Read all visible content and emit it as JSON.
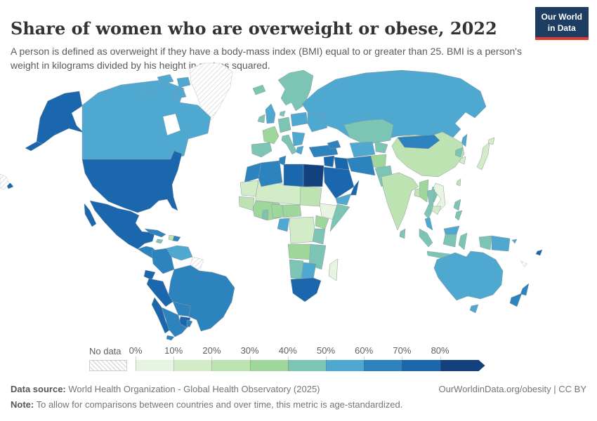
{
  "header": {
    "title": "Share of women who are overweight or obese, 2022",
    "subtitle": "A person is defined as overweight if they have a body-mass index (BMI) equal to or greater than 25. BMI is a person's weight in kilograms divided by his height in metres squared.",
    "logo": {
      "line1": "Our World",
      "line2": "in Data"
    }
  },
  "legend": {
    "no_data_label": "No data",
    "ticks": [
      "0%",
      "10%",
      "20%",
      "30%",
      "40%",
      "50%",
      "60%",
      "70%",
      "80%"
    ]
  },
  "footer": {
    "data_source_label": "Data source:",
    "data_source": " World Health Organization - Global Health Observatory (2025)",
    "note_label": "Note:",
    "note": " To allow for comparisons between countries and over time, this metric is age-standardized.",
    "attribution": "OurWorldinData.org/obesity | CC BY"
  },
  "chart_data": {
    "type": "heatmap",
    "subtype": "choropleth-world-map",
    "title": "Share of women who are overweight or obese, 2022",
    "unit": "%",
    "legend_position": "bottom",
    "no_data_style": "white-with-diagonal-hatch",
    "bins": [
      {
        "range": "0-10%",
        "color": "#e8f4e2"
      },
      {
        "range": "10-20%",
        "color": "#d3ecc8"
      },
      {
        "range": "20-30%",
        "color": "#bde3b2"
      },
      {
        "range": "30-40%",
        "color": "#9fd69b"
      },
      {
        "range": "40-50%",
        "color": "#7cc5b4"
      },
      {
        "range": "50-60%",
        "color": "#4fa8d0"
      },
      {
        "range": "60-70%",
        "color": "#2c83bd"
      },
      {
        "range": "70-80%",
        "color": "#1a67ad"
      },
      {
        "range": "80%+",
        "color": "#12417e"
      }
    ],
    "regions": {
      "united-states": 7,
      "canada": 5,
      "greenland": null,
      "mexico": 7,
      "central-america": 6,
      "cuba": 6,
      "jamaica": 4,
      "haiti": 2,
      "dominican-republic": 6,
      "venezuela": 5,
      "colombia": 6,
      "guianas": null,
      "ecuador": 7,
      "peru": 7,
      "brazil": 6,
      "bolivia": 6,
      "paraguay": 7,
      "chile": 7,
      "argentina": 6,
      "uruguay": 6,
      "iceland": 4,
      "united-kingdom": 5,
      "ireland": 4,
      "scandinavia": 4,
      "denmark": 4,
      "france": 3,
      "spain-portugal": 4,
      "germany-central-europe": 4,
      "italy": 4,
      "poland-baltics": 5,
      "ukraine": 5,
      "balkans": 5,
      "greece": 5,
      "russia": 5,
      "turkey": 6,
      "levant": 7,
      "iraq": 7,
      "saudi-arabia": 7,
      "yemen": 5,
      "oman": 7,
      "iran": 6,
      "caucasus": 6,
      "morocco": 6,
      "algeria": 6,
      "tunisia": 6,
      "libya": 7,
      "egypt": 8,
      "mauritania": 1,
      "sahel": 1,
      "senegal-guinea": 2,
      "west-africa": 3,
      "ghana": 4,
      "nigeria": 3,
      "sudan": 2,
      "ethiopia": 0,
      "somalia": 4,
      "cameroon-car": 3,
      "gabon-congo": 5,
      "drc": 1,
      "kenya-uganda": 3,
      "tanzania": 4,
      "angola": 3,
      "zambia-mozambique": 4,
      "namibia": 4,
      "botswana": 5,
      "south-africa": 7,
      "madagascar": 0,
      "kazakhstan": 4,
      "uzbekistan-turkmenistan": 5,
      "kyrgyzstan-tajikistan": 4,
      "afghanistan": 3,
      "pakistan": 4,
      "india": 2,
      "sri-lanka": 4,
      "bangladesh": 2,
      "china": 2,
      "mongolia": 6,
      "north-korea": 4,
      "south-korea": 1,
      "japan": 1,
      "taiwan": 2,
      "myanmar": 3,
      "thailand": 4,
      "laos": 4,
      "vietnam": 0,
      "cambodia": 1,
      "malaysia": 5,
      "indonesia": 4,
      "philippines": 4,
      "papua-new-guinea": 5,
      "australia": 5,
      "new-zealand": 6,
      "fiji": 7,
      "new-caledonia": null,
      "solomon-islands": 5,
      "left-fragment": null
    }
  }
}
